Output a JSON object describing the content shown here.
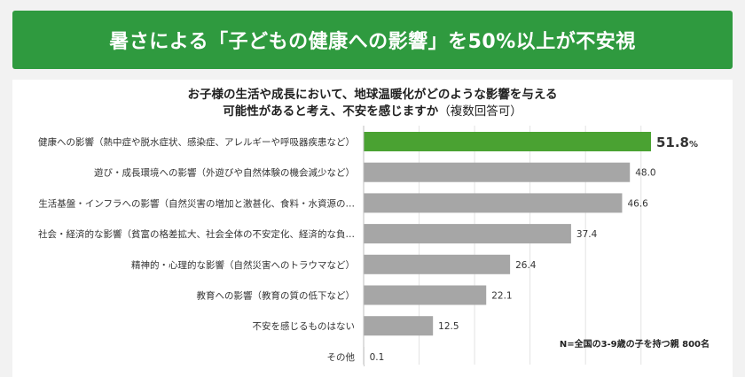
{
  "header": {
    "title": "暑さによる「子どもの健康への影響」を50%以上が不安視"
  },
  "chart_data": {
    "type": "bar",
    "orientation": "horizontal",
    "title_line1": "お子様の生活や成長において、地球温暖化がどのような影響を与える",
    "title_line2": "可能性があると考え、不安を感じますか",
    "title_suffix": "（複数回答可）",
    "categories": [
      "健康への影響（熱中症や脱水症状、感染症、アレルギーや呼吸器疾患など）",
      "遊び・成長環境への影響（外遊びや自然体験の機会減少など）",
      "生活基盤・インフラへの影響（自然災害の増加と激甚化、食料・水資源の…",
      "社会・経済的な影響（貧富の格差拡大、社会全体の不安定化、経済的な負…",
      "精神的・心理的な影響（自然災害へのトラウマなど）",
      "教育への影響（教育の質の低下など）",
      "不安を感じるものはない",
      "その他"
    ],
    "values": [
      51.8,
      48.0,
      46.6,
      37.4,
      26.4,
      22.1,
      12.5,
      0.1
    ],
    "value_labels": [
      "51.8",
      "48.0",
      "46.6",
      "37.4",
      "26.4",
      "22.1",
      "12.5",
      "0.1"
    ],
    "unit": "%",
    "xlim": [
      0,
      55
    ],
    "highlight_color": "#4aa232",
    "bar_color": "#a6a6a6",
    "grid": true,
    "note": "N=全国の3-9歳の子を持つ親 800名"
  }
}
